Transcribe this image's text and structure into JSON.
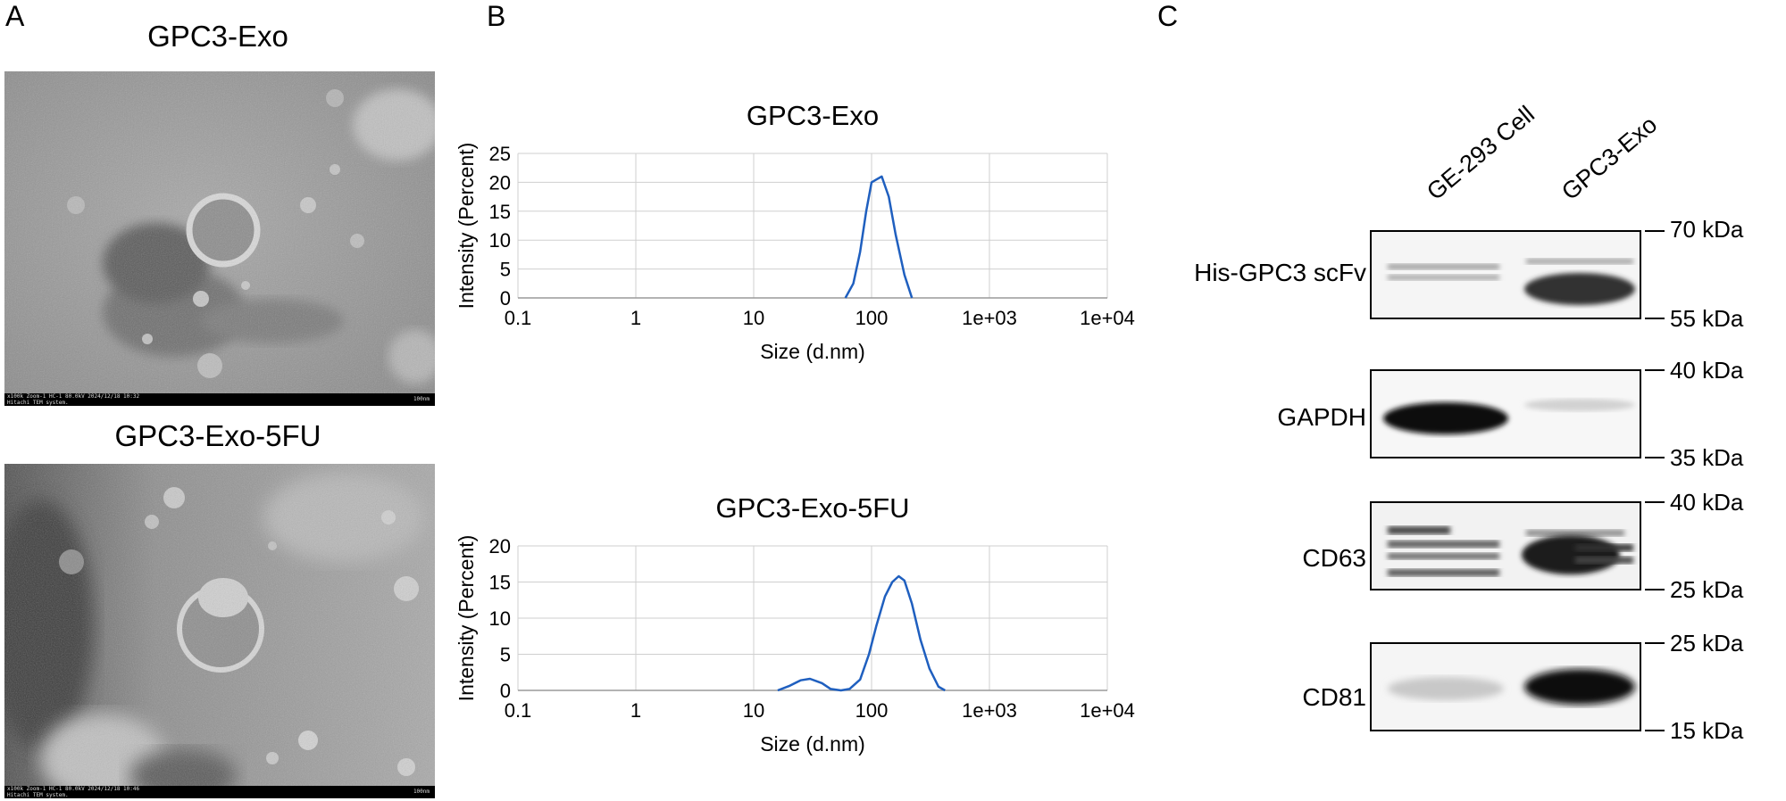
{
  "panels": {
    "a": {
      "letter": "A",
      "tem_top": {
        "title": "GPC3-Exo",
        "footer_left": "x100k Zoom-1 HC-1 80.0kV 2024/12/18 10:32",
        "footer_left2": "Hitachi TEM system.",
        "footer_right": "100nm"
      },
      "tem_bottom": {
        "title": "GPC3-Exo-5FU",
        "footer_left": "x100k Zoom-1 HC-1 80.0kV 2024/12/18 10:46",
        "footer_left2": "Hitachi TEM system.",
        "footer_right": "100nm"
      }
    },
    "b": {
      "letter": "B"
    },
    "c": {
      "letter": "C",
      "lanes": [
        "GE-293 Cell",
        "GPC3-Exo"
      ],
      "blots": [
        {
          "label": "His-GPC3 scFv",
          "marker_top": "70 kDa",
          "marker_bottom": "55 kDa"
        },
        {
          "label": "GAPDH",
          "marker_top": "40 kDa",
          "marker_bottom": "35 kDa"
        },
        {
          "label": "CD63",
          "marker_top": "40 kDa",
          "marker_bottom": "25 kDa"
        },
        {
          "label": "CD81",
          "marker_top": "25 kDa",
          "marker_bottom": "15 kDa"
        }
      ]
    }
  },
  "chart_data": [
    {
      "type": "line",
      "title": "GPC3-Exo",
      "xlabel": "Size (d.nm)",
      "ylabel": "Intensity (Percent)",
      "xscale": "log",
      "xlim": [
        0.1,
        10000
      ],
      "ylim": [
        0,
        25
      ],
      "xticks": [
        0.1,
        1,
        10,
        100,
        1000,
        10000
      ],
      "xtick_labels": [
        "0.1",
        "1",
        "10",
        "100",
        "1e+03",
        "1e+04"
      ],
      "yticks": [
        0,
        5,
        10,
        15,
        20,
        25
      ],
      "color": "#1f5fbf",
      "series": [
        {
          "name": "GPC3-Exo",
          "x": [
            60,
            70,
            80,
            90,
            100,
            110,
            122,
            140,
            160,
            190,
            220
          ],
          "y": [
            0,
            2.5,
            8,
            15,
            20,
            20.5,
            21,
            17.5,
            11,
            4,
            0
          ]
        }
      ]
    },
    {
      "type": "line",
      "title": "GPC3-Exo-5FU",
      "xlabel": "Size (d.nm)",
      "ylabel": "Intensity (Percent)",
      "xscale": "log",
      "xlim": [
        0.1,
        10000
      ],
      "ylim": [
        0,
        20
      ],
      "xticks": [
        0.1,
        1,
        10,
        100,
        1000,
        10000
      ],
      "xtick_labels": [
        "0.1",
        "1",
        "10",
        "100",
        "1e+03",
        "1e+04"
      ],
      "yticks": [
        0,
        5,
        10,
        15,
        20
      ],
      "color": "#1f5fbf",
      "series": [
        {
          "name": "GPC3-Exo-5FU",
          "x": [
            16,
            20,
            25,
            30,
            38,
            45,
            55,
            65,
            80,
            95,
            110,
            130,
            150,
            170,
            190,
            220,
            260,
            310,
            370,
            420
          ],
          "y": [
            0,
            0.6,
            1.4,
            1.6,
            1.0,
            0.2,
            0,
            0.2,
            1.5,
            5,
            9,
            13,
            15,
            15.8,
            15.2,
            12,
            7,
            3,
            0.5,
            0
          ]
        }
      ]
    }
  ]
}
